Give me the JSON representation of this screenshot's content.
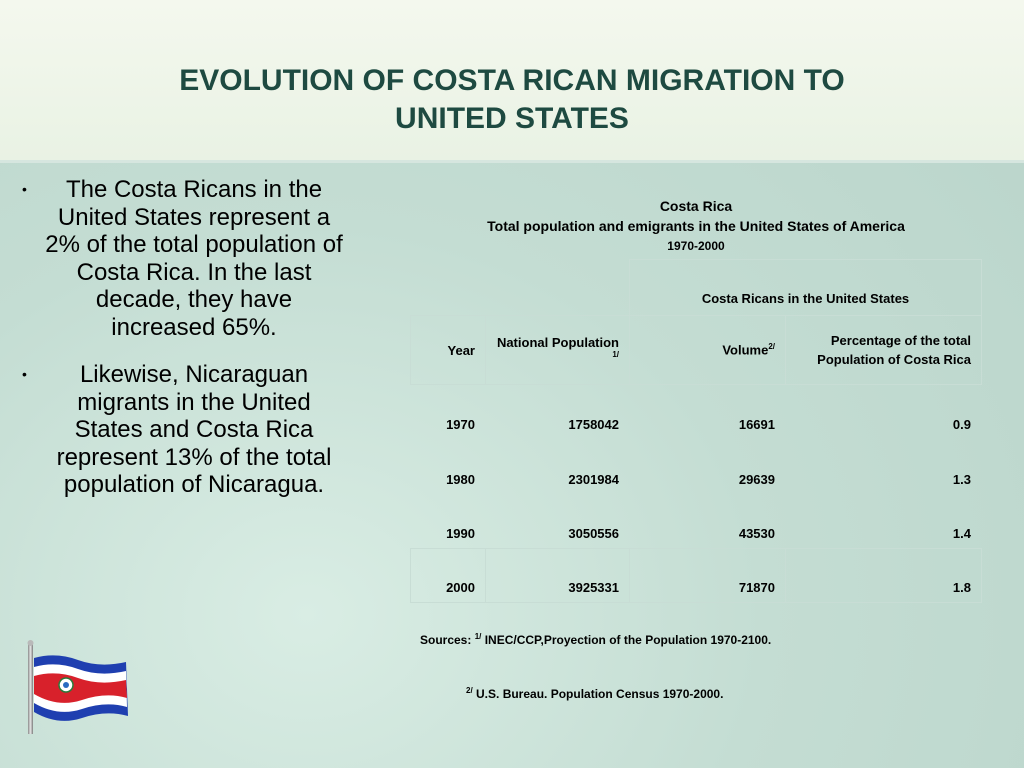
{
  "slide": {
    "title_line1": "EVOLUTION OF COSTA RICAN MIGRATION TO",
    "title_line2": "UNITED STATES"
  },
  "bullets": [
    {
      "marker": "•",
      "text": "The Costa Ricans in the United States represent a 2% of the total population of Costa Rica. In the last decade, they have increased 65%."
    },
    {
      "marker": "•",
      "text": "Likewise, Nicaraguan migrants in the United States and Costa Rica represent 13% of the total population of Nicaragua."
    }
  ],
  "table": {
    "caption_country": "Costa Rica",
    "caption_title": "Total population and emigrants in the United States of America",
    "caption_period": "1970-2000",
    "group_header": "Costa Ricans in the United States",
    "headers": {
      "year": "Year",
      "national_population": "National Population",
      "national_population_note": "1/",
      "volume": "Volume",
      "volume_note": "2/",
      "percentage": "Percentage of the total Population of  Costa Rica"
    },
    "rows": [
      {
        "year": "1970",
        "population": "1758042",
        "volume": "16691",
        "percentage": "0.9"
      },
      {
        "year": "1980",
        "population": "2301984",
        "volume": "29639",
        "percentage": "1.3"
      },
      {
        "year": "1990",
        "population": "3050556",
        "volume": "43530",
        "percentage": "1.4"
      },
      {
        "year": "2000",
        "population": "3925331",
        "volume": "71870",
        "percentage": "1.8"
      }
    ]
  },
  "sources": {
    "label": "Sources:",
    "note1_marker": "1/",
    "note1_text": "INEC/CCP,Proyection of the Population 1970-2100.",
    "note2_marker": "2/",
    "note2_text": "U.S. Bureau. Population Census 1970-2000."
  },
  "colors": {
    "title": "#1e4a41",
    "flag_blue": "#1f3fb0",
    "flag_red": "#d8212b",
    "flag_white": "#ffffff"
  },
  "icons": [
    "costa-rica-flag-icon"
  ]
}
